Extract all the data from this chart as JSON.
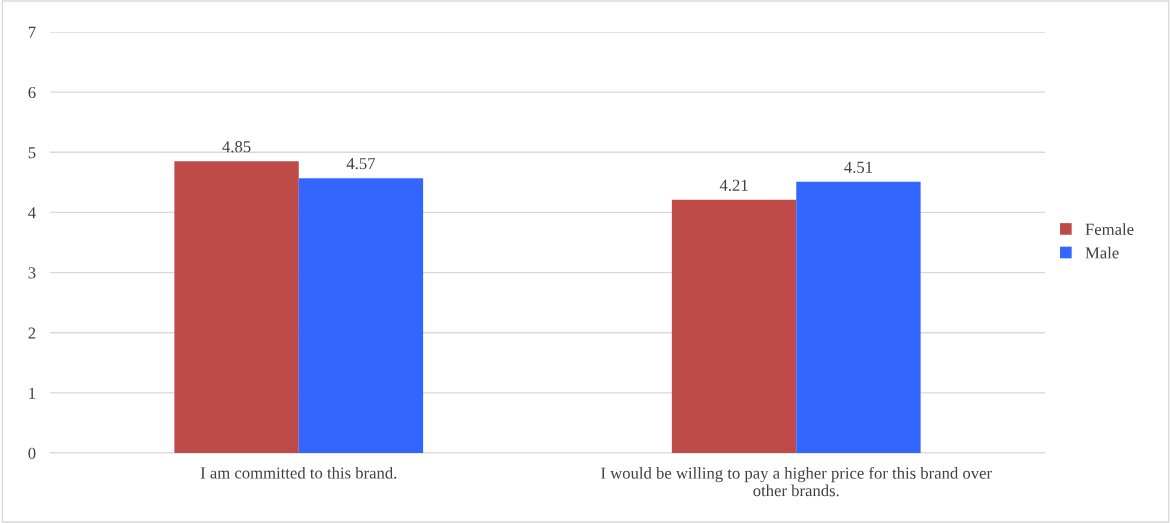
{
  "chart_data": {
    "type": "bar",
    "categories": [
      "I am committed to this brand.",
      "I would be willing to pay a higher price for this brand over other brands."
    ],
    "series": [
      {
        "name": "Female",
        "color": "#be4b48",
        "values": [
          4.85,
          4.21
        ]
      },
      {
        "name": "Male",
        "color": "#3366ff",
        "values": [
          4.57,
          4.51
        ]
      }
    ],
    "ylim": [
      0,
      7
    ],
    "yticks": [
      0,
      1,
      2,
      3,
      4,
      5,
      6,
      7
    ],
    "grid": "y",
    "legend": "right",
    "data_labels": true
  }
}
